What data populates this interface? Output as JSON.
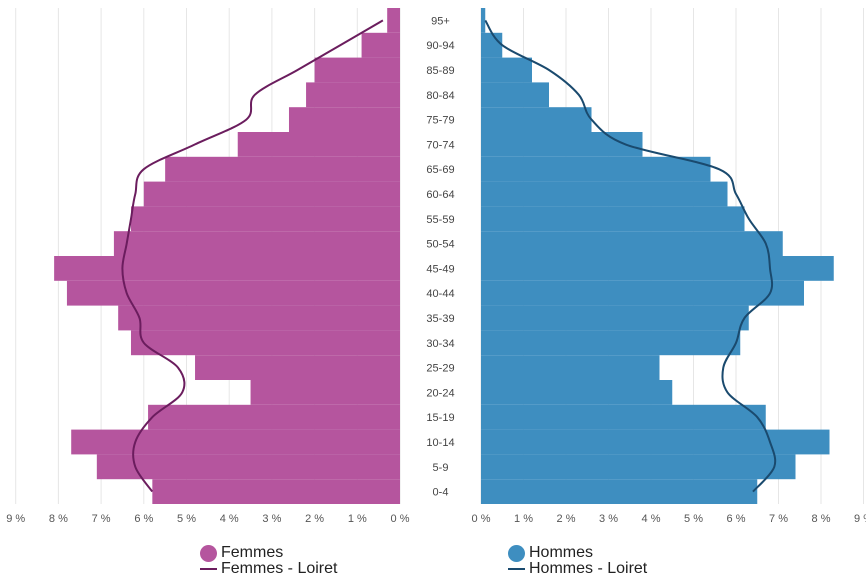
{
  "colors": {
    "femmes": "#b5559e",
    "hommes": "#3e8ec0",
    "femmes_loiret": "#6b1d5e",
    "hommes_loiret": "#1a4a6e",
    "grid": "#e6e6e6"
  },
  "chart_data": {
    "type": "bar",
    "orientation": "horizontal-population-pyramid",
    "categories": [
      "0-4",
      "5-9",
      "10-14",
      "15-19",
      "20-24",
      "25-29",
      "30-34",
      "35-39",
      "40-44",
      "45-49",
      "50-54",
      "55-59",
      "60-64",
      "65-69",
      "70-74",
      "75-79",
      "80-84",
      "85-89",
      "90-94",
      "95+"
    ],
    "xlim": [
      0,
      9
    ],
    "x_ticks_left": [
      "9 %",
      "8 %",
      "7 %",
      "6 %",
      "5 %",
      "4 %",
      "3 %",
      "2 %",
      "1 %",
      "0 %"
    ],
    "x_ticks_right": [
      "0 %",
      "1 %",
      "2 %",
      "3 %",
      "4 %",
      "5 %",
      "6 %",
      "7 %",
      "8 %",
      "9 %"
    ],
    "grid": true,
    "legend_position": "bottom",
    "series": [
      {
        "name": "Femmes",
        "kind": "bar",
        "side": "left",
        "values": [
          5.8,
          7.1,
          7.7,
          5.9,
          3.5,
          4.8,
          6.3,
          6.6,
          7.8,
          8.1,
          6.7,
          6.3,
          6.0,
          5.5,
          3.8,
          2.6,
          2.2,
          2.0,
          0.9,
          0.3
        ]
      },
      {
        "name": "Femmes - Loiret",
        "kind": "line",
        "side": "left",
        "values": [
          5.8,
          6.2,
          6.2,
          5.8,
          5.1,
          5.2,
          6.0,
          6.1,
          6.4,
          6.5,
          6.4,
          6.3,
          6.2,
          6.0,
          4.8,
          3.6,
          3.4,
          2.4,
          1.4,
          0.4
        ]
      },
      {
        "name": "Hommes",
        "kind": "bar",
        "side": "right",
        "values": [
          6.5,
          7.4,
          8.2,
          6.7,
          4.5,
          4.2,
          6.1,
          6.3,
          7.6,
          8.3,
          7.1,
          6.2,
          5.8,
          5.4,
          3.8,
          2.6,
          1.6,
          1.2,
          0.5,
          0.1
        ]
      },
      {
        "name": "Hommes - Loiret",
        "kind": "line",
        "side": "right",
        "values": [
          6.4,
          6.9,
          6.8,
          6.5,
          5.8,
          5.7,
          6.0,
          6.2,
          6.8,
          6.8,
          6.7,
          6.3,
          6.0,
          5.6,
          3.4,
          2.6,
          2.3,
          1.6,
          0.5,
          0.1
        ]
      }
    ]
  },
  "legend": {
    "left": {
      "bar_label": "Femmes",
      "line_label": "Femmes - Loiret"
    },
    "right": {
      "bar_label": "Hommes",
      "line_label": "Hommes - Loiret"
    }
  }
}
